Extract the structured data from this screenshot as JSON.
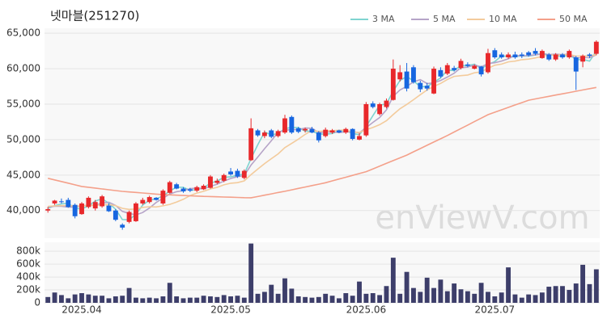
{
  "chart_data": [
    {
      "type": "candlestick",
      "title": "넷마블(251270)",
      "watermark": "enViewV.com",
      "open": [
        40000,
        41000,
        41300,
        41500,
        40800,
        39500,
        40500,
        40300,
        40600,
        40700,
        40000,
        38000,
        38400,
        38500,
        41000,
        41200,
        41800,
        41000,
        42500,
        43700,
        43100,
        43000,
        42800,
        43000,
        43200,
        43900,
        44200,
        45500,
        45600,
        44600,
        47100,
        51300,
        50500,
        51300,
        50500,
        51000,
        53200,
        51600,
        51300,
        51500,
        51000,
        50500,
        51000,
        51300,
        51000,
        51500,
        50000,
        50600,
        55100,
        53600,
        54600,
        55600,
        58500,
        59600,
        60200,
        58000,
        57600,
        56500,
        59800,
        59300,
        60100,
        60100,
        60600,
        60000,
        60300,
        59500,
        62600,
        62000,
        61600,
        62000,
        62000,
        62300,
        62500,
        61500,
        62000,
        61300,
        62000,
        61600,
        61600,
        61000,
        62000,
        62100
      ],
      "high": [
        40500,
        41500,
        41700,
        41800,
        41000,
        41200,
        42000,
        41500,
        42200,
        41000,
        40200,
        38200,
        40000,
        41200,
        41800,
        42100,
        41900,
        43000,
        44200,
        43900,
        43300,
        43200,
        43500,
        43700,
        45000,
        44500,
        45200,
        46000,
        45900,
        45800,
        53000,
        51500,
        51300,
        51500,
        51400,
        53500,
        53400,
        51800,
        51700,
        51800,
        51200,
        51700,
        51500,
        51400,
        51700,
        51600,
        50900,
        55300,
        55400,
        55200,
        55800,
        61300,
        60500,
        60800,
        60500,
        58300,
        58000,
        60300,
        60200,
        60800,
        60400,
        61400,
        60900,
        60600,
        60400,
        62800,
        62900,
        62300,
        62300,
        62400,
        62300,
        62500,
        62900,
        62700,
        62200,
        62200,
        62200,
        62700,
        61800,
        62000,
        62200,
        64000
      ],
      "low": [
        39700,
        40800,
        41000,
        40400,
        38900,
        39400,
        40300,
        40000,
        40400,
        39800,
        38500,
        37300,
        38200,
        38400,
        40800,
        41000,
        41400,
        40800,
        42400,
        43000,
        42500,
        42600,
        42600,
        42900,
        43100,
        43700,
        44000,
        44900,
        44600,
        44400,
        47000,
        50400,
        50200,
        50200,
        50300,
        50800,
        50800,
        50900,
        51000,
        50900,
        49600,
        50300,
        50800,
        50900,
        50800,
        49900,
        49900,
        50400,
        54400,
        53400,
        54400,
        55500,
        58200,
        56800,
        57900,
        56700,
        56900,
        56400,
        58700,
        59100,
        59600,
        59900,
        60200,
        59900,
        58900,
        59300,
        61400,
        61400,
        61400,
        61400,
        61500,
        61700,
        61900,
        61400,
        61100,
        61100,
        61400,
        61400,
        57000,
        60200,
        61500,
        61900
      ],
      "close": [
        40200,
        41400,
        41200,
        40500,
        39200,
        41000,
        41800,
        41200,
        42000,
        39900,
        38700,
        37600,
        39800,
        41000,
        41500,
        41900,
        41500,
        42800,
        44000,
        43100,
        42700,
        42800,
        43300,
        43500,
        44800,
        44200,
        45000,
        45100,
        44800,
        45600,
        51600,
        50600,
        51000,
        50400,
        51200,
        53000,
        51000,
        51100,
        51500,
        51000,
        49900,
        51400,
        51300,
        51000,
        51500,
        50100,
        50500,
        55000,
        54600,
        55000,
        55500,
        60000,
        59500,
        57200,
        58100,
        57100,
        57200,
        60000,
        58900,
        60500,
        59800,
        61100,
        60400,
        60400,
        59200,
        62200,
        61600,
        61600,
        62000,
        61600,
        61800,
        61900,
        62100,
        62500,
        61300,
        62000,
        61600,
        62500,
        59600,
        61800,
        61800,
        63800
      ],
      "up_color": "#e8282b",
      "down_color": "#1766e0",
      "series": [
        {
          "name": "3 MA",
          "color": "#7fd4d0",
          "values": [
            40300,
            40700,
            40933,
            41033,
            40300,
            40233,
            40667,
            41333,
            41667,
            41033,
            40200,
            38733,
            38700,
            39467,
            40767,
            41467,
            41633,
            42067,
            42767,
            43300,
            43267,
            42867,
            42933,
            43200,
            43867,
            44167,
            44667,
            44767,
            44967,
            45167,
            47333,
            49267,
            51067,
            50667,
            50867,
            51533,
            51733,
            51700,
            51200,
            51200,
            50800,
            50767,
            50867,
            51233,
            51267,
            50867,
            50700,
            51867,
            53367,
            54867,
            55033,
            56833,
            58333,
            58900,
            58267,
            57467,
            57467,
            58100,
            58700,
            59800,
            59733,
            60467,
            60433,
            60633,
            60000,
            60600,
            61000,
            61800,
            61733,
            61733,
            61800,
            61767,
            61933,
            62167,
            61967,
            61933,
            61633,
            62033,
            61233,
            61300,
            61067,
            62467
          ]
        },
        {
          "name": "5 MA",
          "color": "#b6a4c8",
          "values": [
            40500,
            40600,
            40600,
            40500,
            40500,
            40660,
            40740,
            40740,
            41040,
            41180,
            40720,
            39880,
            39600,
            39400,
            39720,
            40360,
            41140,
            41740,
            42340,
            42660,
            42820,
            43080,
            43180,
            43080,
            43420,
            43720,
            44160,
            44520,
            44780,
            44940,
            46420,
            47540,
            48720,
            49840,
            51040,
            51320,
            51400,
            51420,
            51640,
            51600,
            50980,
            51060,
            51100,
            51000,
            51100,
            51140,
            50960,
            51700,
            52420,
            53120,
            54200,
            56100,
            57000,
            57520,
            58140,
            58460,
            57900,
            58000,
            58340,
            58820,
            59360,
            60140,
            60220,
            60520,
            60260,
            60740,
            60840,
            61080,
            61400,
            61880,
            61800,
            61860,
            61960,
            62060,
            62000,
            62040,
            61980,
            62060,
            61480,
            61580,
            61540,
            61960
          ]
        },
        {
          "name": "10 MA",
          "color": "#f3cb9c",
          "values": [
            40600,
            40650,
            40700,
            40700,
            40650,
            40650,
            40700,
            40750,
            40800,
            40840,
            40690,
            40310,
            40170,
            40220,
            40450,
            40540,
            40510,
            40670,
            40870,
            41190,
            41590,
            42110,
            42460,
            42710,
            43040,
            43270,
            43620,
            43850,
            43930,
            44180,
            45070,
            45850,
            46620,
            47310,
            47990,
            48870,
            49470,
            50070,
            50740,
            51320,
            51150,
            51230,
            51260,
            51320,
            51350,
            51060,
            51010,
            51400,
            51710,
            52110,
            52670,
            53530,
            54350,
            54970,
            55630,
            56330,
            57000,
            57500,
            57930,
            58480,
            58910,
            59020,
            59110,
            59430,
            59540,
            60050,
            60490,
            60650,
            60960,
            61070,
            61270,
            61350,
            61520,
            61730,
            61940,
            61920,
            61920,
            62010,
            61770,
            61790,
            61790,
            61970
          ]
        },
        {
          "name": "50 MA",
          "color": "#f4a08a",
          "values": [
            44550,
            44320,
            44090,
            43860,
            43630,
            43400,
            43280,
            43170,
            43050,
            42930,
            42820,
            42700,
            42620,
            42550,
            42470,
            42400,
            42320,
            42250,
            42210,
            42170,
            42120,
            42080,
            42040,
            42000,
            41970,
            41940,
            41910,
            41880,
            41850,
            41820,
            41800,
            41980,
            42170,
            42350,
            42540,
            42720,
            42920,
            43120,
            43320,
            43520,
            43720,
            43920,
            44180,
            44440,
            44700,
            44960,
            45220,
            45480,
            45870,
            46260,
            46650,
            47040,
            47430,
            47820,
            48280,
            48740,
            49200,
            49660,
            50120,
            50580,
            51070,
            51560,
            52050,
            52540,
            53030,
            53520,
            53860,
            54200,
            54540,
            54880,
            55220,
            55560,
            55740,
            55920,
            56100,
            56280,
            56460,
            56640,
            56820,
            57000,
            57180,
            57360
          ]
        }
      ],
      "ylim": [
        36100,
        65700
      ],
      "yticks": [
        {
          "value": 40000,
          "label": "40,000"
        },
        {
          "value": 45000,
          "label": "45,000"
        },
        {
          "value": 50000,
          "label": "50,000"
        },
        {
          "value": 55000,
          "label": "55,000"
        },
        {
          "value": 60000,
          "label": "60,000"
        },
        {
          "value": 65000,
          "label": "65,000"
        }
      ],
      "grid": true,
      "legend": "top-right"
    },
    {
      "type": "bar",
      "color": "#3d3e6a",
      "categories": [
        null,
        null,
        null,
        null,
        null,
        "2025.04",
        null,
        null,
        null,
        null,
        null,
        null,
        null,
        null,
        null,
        null,
        null,
        null,
        null,
        null,
        null,
        null,
        null,
        null,
        null,
        null,
        null,
        "2025.05",
        null,
        null,
        null,
        null,
        null,
        null,
        null,
        null,
        null,
        null,
        null,
        null,
        null,
        null,
        null,
        null,
        null,
        null,
        null,
        "2025.06",
        null,
        null,
        null,
        null,
        null,
        null,
        null,
        null,
        null,
        null,
        null,
        null,
        null,
        null,
        null,
        null,
        null,
        null,
        "2025.07",
        null,
        null,
        null,
        null,
        null,
        null,
        null,
        null,
        null,
        null,
        null,
        null,
        null,
        null,
        null
      ],
      "values": [
        90000,
        160000,
        120000,
        70000,
        130000,
        150000,
        130000,
        110000,
        110000,
        70000,
        100000,
        110000,
        230000,
        80000,
        70000,
        80000,
        70000,
        100000,
        310000,
        100000,
        70000,
        80000,
        80000,
        110000,
        100000,
        90000,
        120000,
        100000,
        110000,
        80000,
        920000,
        140000,
        170000,
        280000,
        140000,
        380000,
        220000,
        100000,
        90000,
        80000,
        90000,
        140000,
        110000,
        70000,
        150000,
        110000,
        330000,
        140000,
        150000,
        120000,
        260000,
        700000,
        140000,
        480000,
        230000,
        170000,
        390000,
        230000,
        360000,
        180000,
        300000,
        210000,
        180000,
        140000,
        310000,
        170000,
        100000,
        160000,
        550000,
        130000,
        80000,
        130000,
        120000,
        160000,
        250000,
        260000,
        260000,
        200000,
        300000,
        590000,
        290000,
        520000
      ],
      "ylim": [
        0,
        940000
      ],
      "yticks": [
        0,
        {
          "value": 200000,
          "label": "200k"
        },
        {
          "value": 400000,
          "label": "400k"
        },
        {
          "value": 600000,
          "label": "600k"
        },
        {
          "value": 800000,
          "label": "800k"
        }
      ],
      "grid": true
    }
  ]
}
